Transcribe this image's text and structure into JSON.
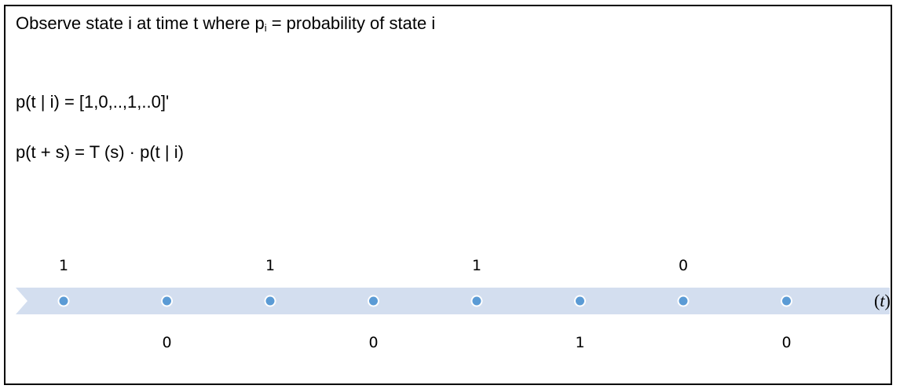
{
  "text": {
    "line1_before": "Observe state i at time t where p",
    "line1_sub": "i",
    "line1_after": " = probability of state i",
    "line2": "p(t | i) = [1,0,..,1,..0]'",
    "line3": "p(t + s) = T (s) · p(t | i)"
  },
  "timeline": {
    "values": [
      "1",
      "0",
      "1",
      "0",
      "1",
      "1",
      "0",
      "0"
    ],
    "axis_open": "(",
    "axis_var": "t",
    "axis_close": ")",
    "colors": {
      "band": "#d3deef",
      "dot_fill": "#5b9bd5",
      "dot_stroke": "#ffffff"
    }
  }
}
